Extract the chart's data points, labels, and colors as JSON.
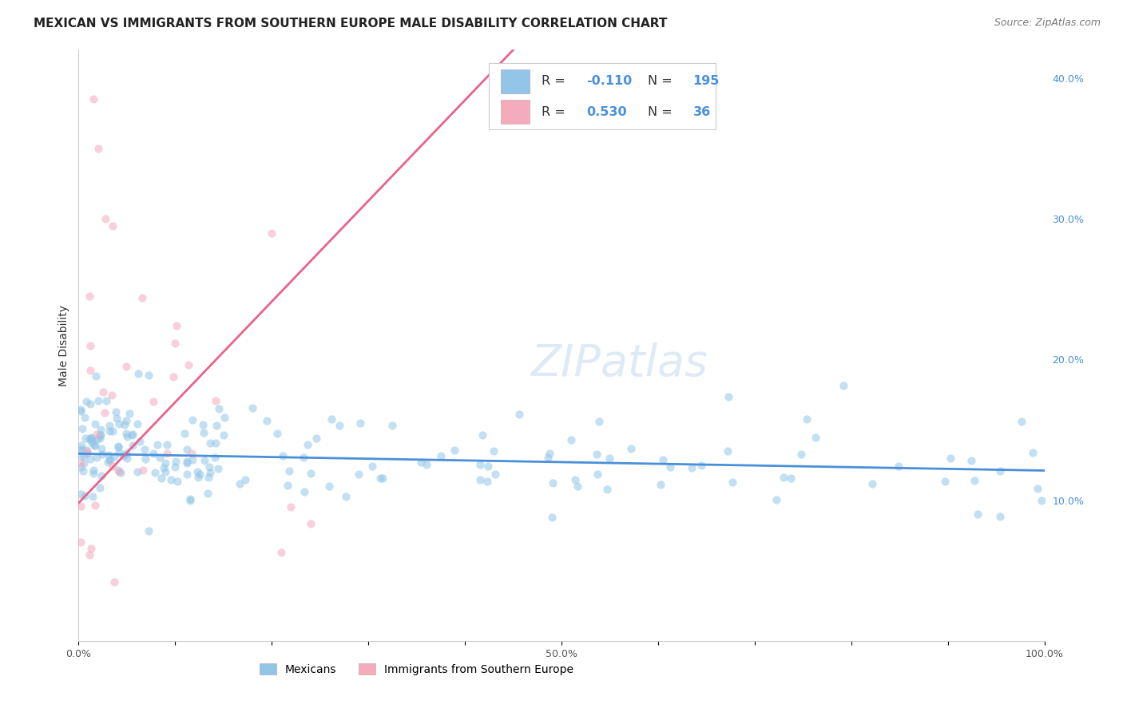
{
  "title": "MEXICAN VS IMMIGRANTS FROM SOUTHERN EUROPE MALE DISABILITY CORRELATION CHART",
  "source": "Source: ZipAtlas.com",
  "ylabel": "Male Disability",
  "watermark": "ZIPatlas",
  "xlim": [
    0,
    1
  ],
  "ylim": [
    0,
    0.42
  ],
  "x_ticks": [
    0.0,
    0.1,
    0.2,
    0.3,
    0.4,
    0.5,
    0.6,
    0.7,
    0.8,
    0.9,
    1.0
  ],
  "x_tick_labels": [
    "0.0%",
    "",
    "",
    "",
    "",
    "50.0%",
    "",
    "",
    "",
    "",
    "100.0%"
  ],
  "y_ticks": [
    0.1,
    0.2,
    0.3,
    0.4
  ],
  "y_tick_labels": [
    "10.0%",
    "20.0%",
    "30.0%",
    "40.0%"
  ],
  "blue_color": "#92C5E8",
  "pink_color": "#F4ABBE",
  "blue_line_color": "#4A90D9",
  "pink_line_color": "#E8638A",
  "trendline_gray": "#BBBBBB",
  "legend_blue_label": "Mexicans",
  "legend_pink_label": "Immigrants from Southern Europe",
  "R_blue": "-0.110",
  "N_blue": "195",
  "R_pink": "0.530",
  "N_pink": "36",
  "title_fontsize": 11,
  "axis_label_fontsize": 10,
  "tick_fontsize": 9,
  "legend_fontsize": 10,
  "source_fontsize": 9,
  "watermark_fontsize": 40,
  "scatter_size": 55,
  "scatter_alpha": 0.55,
  "grid_color": "#DDDDE8",
  "background_color": "#FFFFFF",
  "right_axis_color": "#4A90D9",
  "blue_seed": 77,
  "pink_seed": 99
}
